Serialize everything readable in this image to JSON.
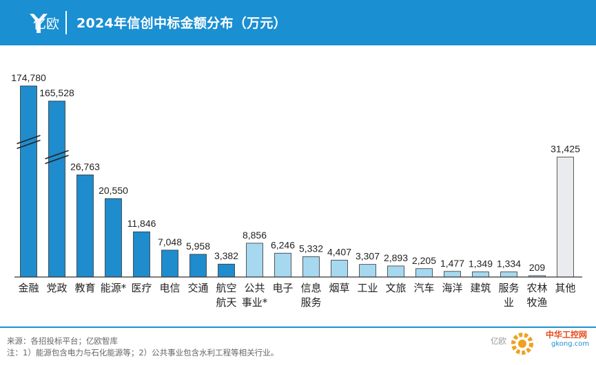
{
  "header": {
    "brand": "亿欧",
    "title": "2024年信创中标金额分布（万元）"
  },
  "footer": {
    "source": "来源：各招投标平台；亿欧智库",
    "note": "注：1）能源包含电力与石化能源等；2）公共事业包含水利工程等相关行业。",
    "watermark": "亿欧",
    "site_name": "中华工控网",
    "site_url": "gkong.com"
  },
  "colors": {
    "header": "#1a8fd2",
    "dark_blue": "#1f8ccd",
    "light_blue": "#a6d8f0",
    "gray": "#e9ebef",
    "bar_stroke": "#333333"
  },
  "chart_data": {
    "type": "bar",
    "title": "2024年信创中标金额分布（万元）",
    "categories": [
      "金融",
      "党政",
      "教育",
      "能源*",
      "医疗",
      "电信",
      "交通",
      "航空航天",
      "公共事业*",
      "电子",
      "信息服务",
      "烟草",
      "工业",
      "文旅",
      "汽车",
      "海洋",
      "建筑",
      "服务业",
      "农林牧渔",
      "其他"
    ],
    "category_lines": [
      [
        "金融"
      ],
      [
        "党政"
      ],
      [
        "教育"
      ],
      [
        "能源*"
      ],
      [
        "医疗"
      ],
      [
        "电信"
      ],
      [
        "交通"
      ],
      [
        "航空",
        "航天"
      ],
      [
        "公共",
        "事业*"
      ],
      [
        "电子"
      ],
      [
        "信息",
        "服务"
      ],
      [
        "烟草"
      ],
      [
        "工业"
      ],
      [
        "文旅"
      ],
      [
        "汽车"
      ],
      [
        "海洋"
      ],
      [
        "建筑"
      ],
      [
        "服务",
        "业"
      ],
      [
        "农林",
        "牧渔"
      ],
      [
        "其他"
      ]
    ],
    "values": [
      174780,
      165528,
      26763,
      20550,
      11846,
      7048,
      5958,
      3382,
      8856,
      6246,
      5332,
      4407,
      3307,
      2893,
      2205,
      1477,
      1349,
      1334,
      209,
      31425
    ],
    "value_labels": [
      "174,780",
      "165,528",
      "26,763",
      "20,550",
      "11,846",
      "7,048",
      "5,958",
      "3,382",
      "8,856",
      "6,246",
      "5,332",
      "4,407",
      "3,307",
      "2,893",
      "2,205",
      "1,477",
      "1,349",
      "1,334",
      "209",
      "31,425"
    ],
    "color_groups": [
      "dark",
      "dark",
      "dark",
      "dark",
      "dark",
      "dark",
      "dark",
      "dark",
      "light",
      "light",
      "light",
      "light",
      "light",
      "light",
      "light",
      "light",
      "light",
      "light",
      "light",
      "gray"
    ],
    "axis_break": {
      "categories": [
        "金融",
        "党政"
      ],
      "style": "double-slash"
    },
    "grid": false,
    "legend": "none"
  }
}
